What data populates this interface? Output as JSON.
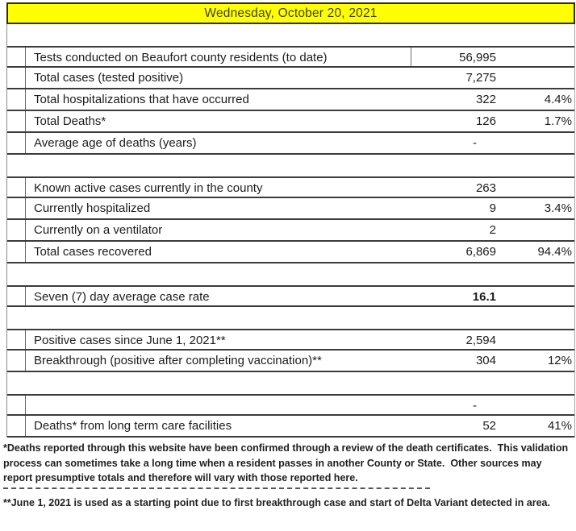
{
  "header": {
    "date_label": "Wednesday, October 20, 2021",
    "bg_color": "#FFFF00",
    "text_color": "#3F3F2B"
  },
  "colors": {
    "row_border": "#3B3B3B",
    "table_text": "#1C1C1C",
    "footnote_text": "#1F1F1F",
    "background": "#FFFFFF"
  },
  "table": {
    "rows": [
      {
        "type": "blank",
        "label": "",
        "value": "",
        "pct": ""
      },
      {
        "type": "data",
        "group_start": true,
        "label_divider": true,
        "label": "Tests conducted on Beaufort county residents (to date)",
        "value": "56,995",
        "pct": ""
      },
      {
        "type": "data",
        "label": "Total cases (tested positive)",
        "value": "7,275",
        "pct": ""
      },
      {
        "type": "data",
        "label": "Total hospitalizations that have occurred",
        "value": "322",
        "pct": "4.4%"
      },
      {
        "type": "data",
        "label": "Total Deaths*",
        "value": "126",
        "pct": "1.7%"
      },
      {
        "type": "data",
        "label": "Average age of deaths (years)",
        "value": "-",
        "dash_value": true,
        "pct": ""
      },
      {
        "type": "blank",
        "label": "",
        "value": "",
        "pct": ""
      },
      {
        "type": "data",
        "group_start": true,
        "label": "Known active cases currently in the county",
        "value": "263",
        "pct": ""
      },
      {
        "type": "data",
        "label": "Currently hospitalized",
        "value": "9",
        "pct": "3.4%"
      },
      {
        "type": "data",
        "label": "Currently on a ventilator",
        "value": "2",
        "pct": ""
      },
      {
        "type": "data",
        "label": "Total cases recovered",
        "value": "6,869",
        "pct": "94.4%"
      },
      {
        "type": "blank",
        "label": "",
        "value": "",
        "pct": ""
      },
      {
        "type": "data",
        "group_start": true,
        "label": "Seven (7) day average case rate",
        "value": "16.1",
        "bold": true,
        "pct": ""
      },
      {
        "type": "blank",
        "label": "",
        "value": "",
        "pct": ""
      },
      {
        "type": "data",
        "group_start": true,
        "label": "Positive cases since June 1, 2021**",
        "value": "2,594",
        "pct": ""
      },
      {
        "type": "data",
        "label": "Breakthrough (positive after completing vaccination)**",
        "value": "304",
        "pct": "12%"
      },
      {
        "type": "blank",
        "label": "",
        "value": "",
        "pct": ""
      },
      {
        "type": "data",
        "group_start": true,
        "label": "",
        "value": "-",
        "dash_value": true,
        "pct": ""
      },
      {
        "type": "data",
        "label": "Deaths* from long term care facilities",
        "value": "52",
        "pct": "41%"
      }
    ]
  },
  "footnotes": {
    "deaths_note": "*Deaths reported through this website have been confirmed through a review of the death certificates.  This validation process can sometimes take a long time when a resident passes in another County or State.  Other sources may report presumptive totals and therefore will vary with those reported here.",
    "june_note": "**June 1, 2021 is used as a starting point due to first breakthrough case and start of Delta Variant detected in area."
  }
}
